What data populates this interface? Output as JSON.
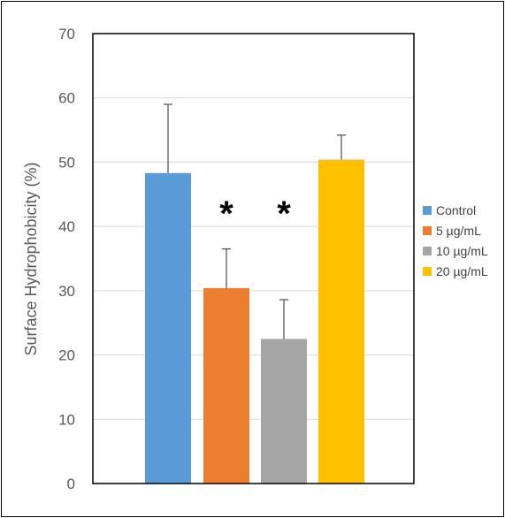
{
  "chart_data": {
    "type": "bar",
    "title": "",
    "xlabel": "",
    "ylabel": "Surface Hydrophobicity (%)",
    "ylim": [
      0,
      70
    ],
    "yticks": [
      0,
      10,
      20,
      30,
      40,
      50,
      60,
      70
    ],
    "grid": true,
    "legend_position": "right",
    "series": [
      {
        "name": "Control",
        "value": 48.3,
        "error": 10.7,
        "color": "#5B9BD5",
        "annotation": ""
      },
      {
        "name": "5 µg/mL",
        "value": 30.4,
        "error": 6.1,
        "color": "#ED7D31",
        "annotation": "*"
      },
      {
        "name": "10 µg/mL",
        "value": 22.5,
        "error": 6.1,
        "color": "#A5A5A5",
        "annotation": "*"
      },
      {
        "name": "20 µg/mL",
        "value": 50.4,
        "error": 3.8,
        "color": "#FFC000",
        "annotation": ""
      }
    ]
  }
}
